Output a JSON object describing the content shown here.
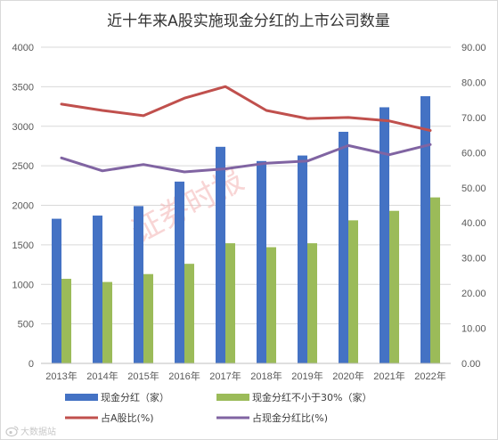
{
  "chart_data": {
    "type": "bar",
    "title": "近十年来A股实施现金分红的上市公司数量",
    "categories": [
      "2013年",
      "2014年",
      "2015年",
      "2016年",
      "2017年",
      "2018年",
      "2019年",
      "2020年",
      "2021年",
      "2022年"
    ],
    "y_left": {
      "min": 0,
      "max": 4000,
      "step": 500,
      "ticks": [
        "0",
        "500",
        "1000",
        "1500",
        "2000",
        "2500",
        "3000",
        "3500",
        "4000"
      ]
    },
    "y_right": {
      "min": 0,
      "max": 90,
      "step": 10,
      "ticks": [
        "0.00",
        "10.00",
        "20.00",
        "30.00",
        "40.00",
        "50.00",
        "60.00",
        "70.00",
        "80.00",
        "90.00"
      ]
    },
    "grid": true,
    "legend_position": "bottom",
    "series": [
      {
        "name": "现金分红（家）",
        "kind": "bar",
        "axis": "left",
        "color": "#4472c4",
        "values": [
          1830,
          1870,
          1990,
          2300,
          2740,
          2560,
          2630,
          2930,
          3240,
          3380
        ]
      },
      {
        "name": "现金分红不小于30%（家）",
        "kind": "bar",
        "axis": "left",
        "color": "#9bbb59",
        "values": [
          1070,
          1030,
          1130,
          1260,
          1520,
          1470,
          1520,
          1810,
          1930,
          2100
        ]
      },
      {
        "name": "占A股比(%)",
        "kind": "line",
        "axis": "right",
        "color": "#c0504d",
        "values": [
          73.8,
          72.0,
          70.5,
          75.5,
          78.8,
          72.0,
          69.7,
          70.0,
          69.0,
          66.3
        ]
      },
      {
        "name": "占现金分红比(%)",
        "kind": "line",
        "axis": "right",
        "color": "#8064a2",
        "values": [
          58.5,
          54.8,
          56.6,
          54.5,
          55.4,
          57.0,
          57.6,
          62.0,
          59.4,
          62.3
        ]
      }
    ]
  },
  "watermark": "证券时报",
  "corner_mark": "大数据站",
  "corner_icon": "weibo-icon"
}
